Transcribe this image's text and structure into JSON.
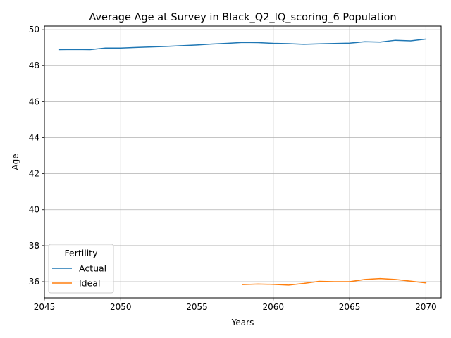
{
  "chart_data": {
    "type": "line",
    "title": "Average Age at Survey in Black_Q2_IQ_scoring_6 Population",
    "xlabel": "Years",
    "ylabel": "Age",
    "xlim": [
      2045.0,
      2071.0
    ],
    "ylim": [
      35.1,
      50.2
    ],
    "xticks": [
      2045,
      2050,
      2055,
      2060,
      2065,
      2070
    ],
    "yticks": [
      36,
      38,
      40,
      42,
      44,
      46,
      48,
      50
    ],
    "grid": true,
    "legend": {
      "title": "Fertility",
      "placement": "lower-left"
    },
    "series": [
      {
        "name": "Actual",
        "color": "#1f77b4",
        "x": [
          2046,
          2047,
          2048,
          2049,
          2050,
          2051,
          2052,
          2053,
          2054,
          2055,
          2056,
          2057,
          2058,
          2059,
          2060,
          2061,
          2062,
          2063,
          2064,
          2065,
          2066,
          2067,
          2068,
          2069,
          2070
        ],
        "y": [
          48.89,
          48.9,
          48.89,
          48.98,
          48.98,
          49.01,
          49.04,
          49.07,
          49.11,
          49.15,
          49.2,
          49.24,
          49.29,
          49.28,
          49.24,
          49.22,
          49.19,
          49.21,
          49.23,
          49.25,
          49.33,
          49.31,
          49.41,
          49.38,
          49.48
        ]
      },
      {
        "name": "Ideal",
        "color": "#ff7f0e",
        "x": [
          2058,
          2059,
          2060,
          2061,
          2062,
          2063,
          2064,
          2065,
          2066,
          2067,
          2068,
          2069,
          2070
        ],
        "y": [
          35.84,
          35.87,
          35.85,
          35.81,
          35.9,
          36.02,
          36.0,
          36.0,
          36.12,
          36.17,
          36.12,
          36.03,
          35.93
        ]
      }
    ]
  }
}
